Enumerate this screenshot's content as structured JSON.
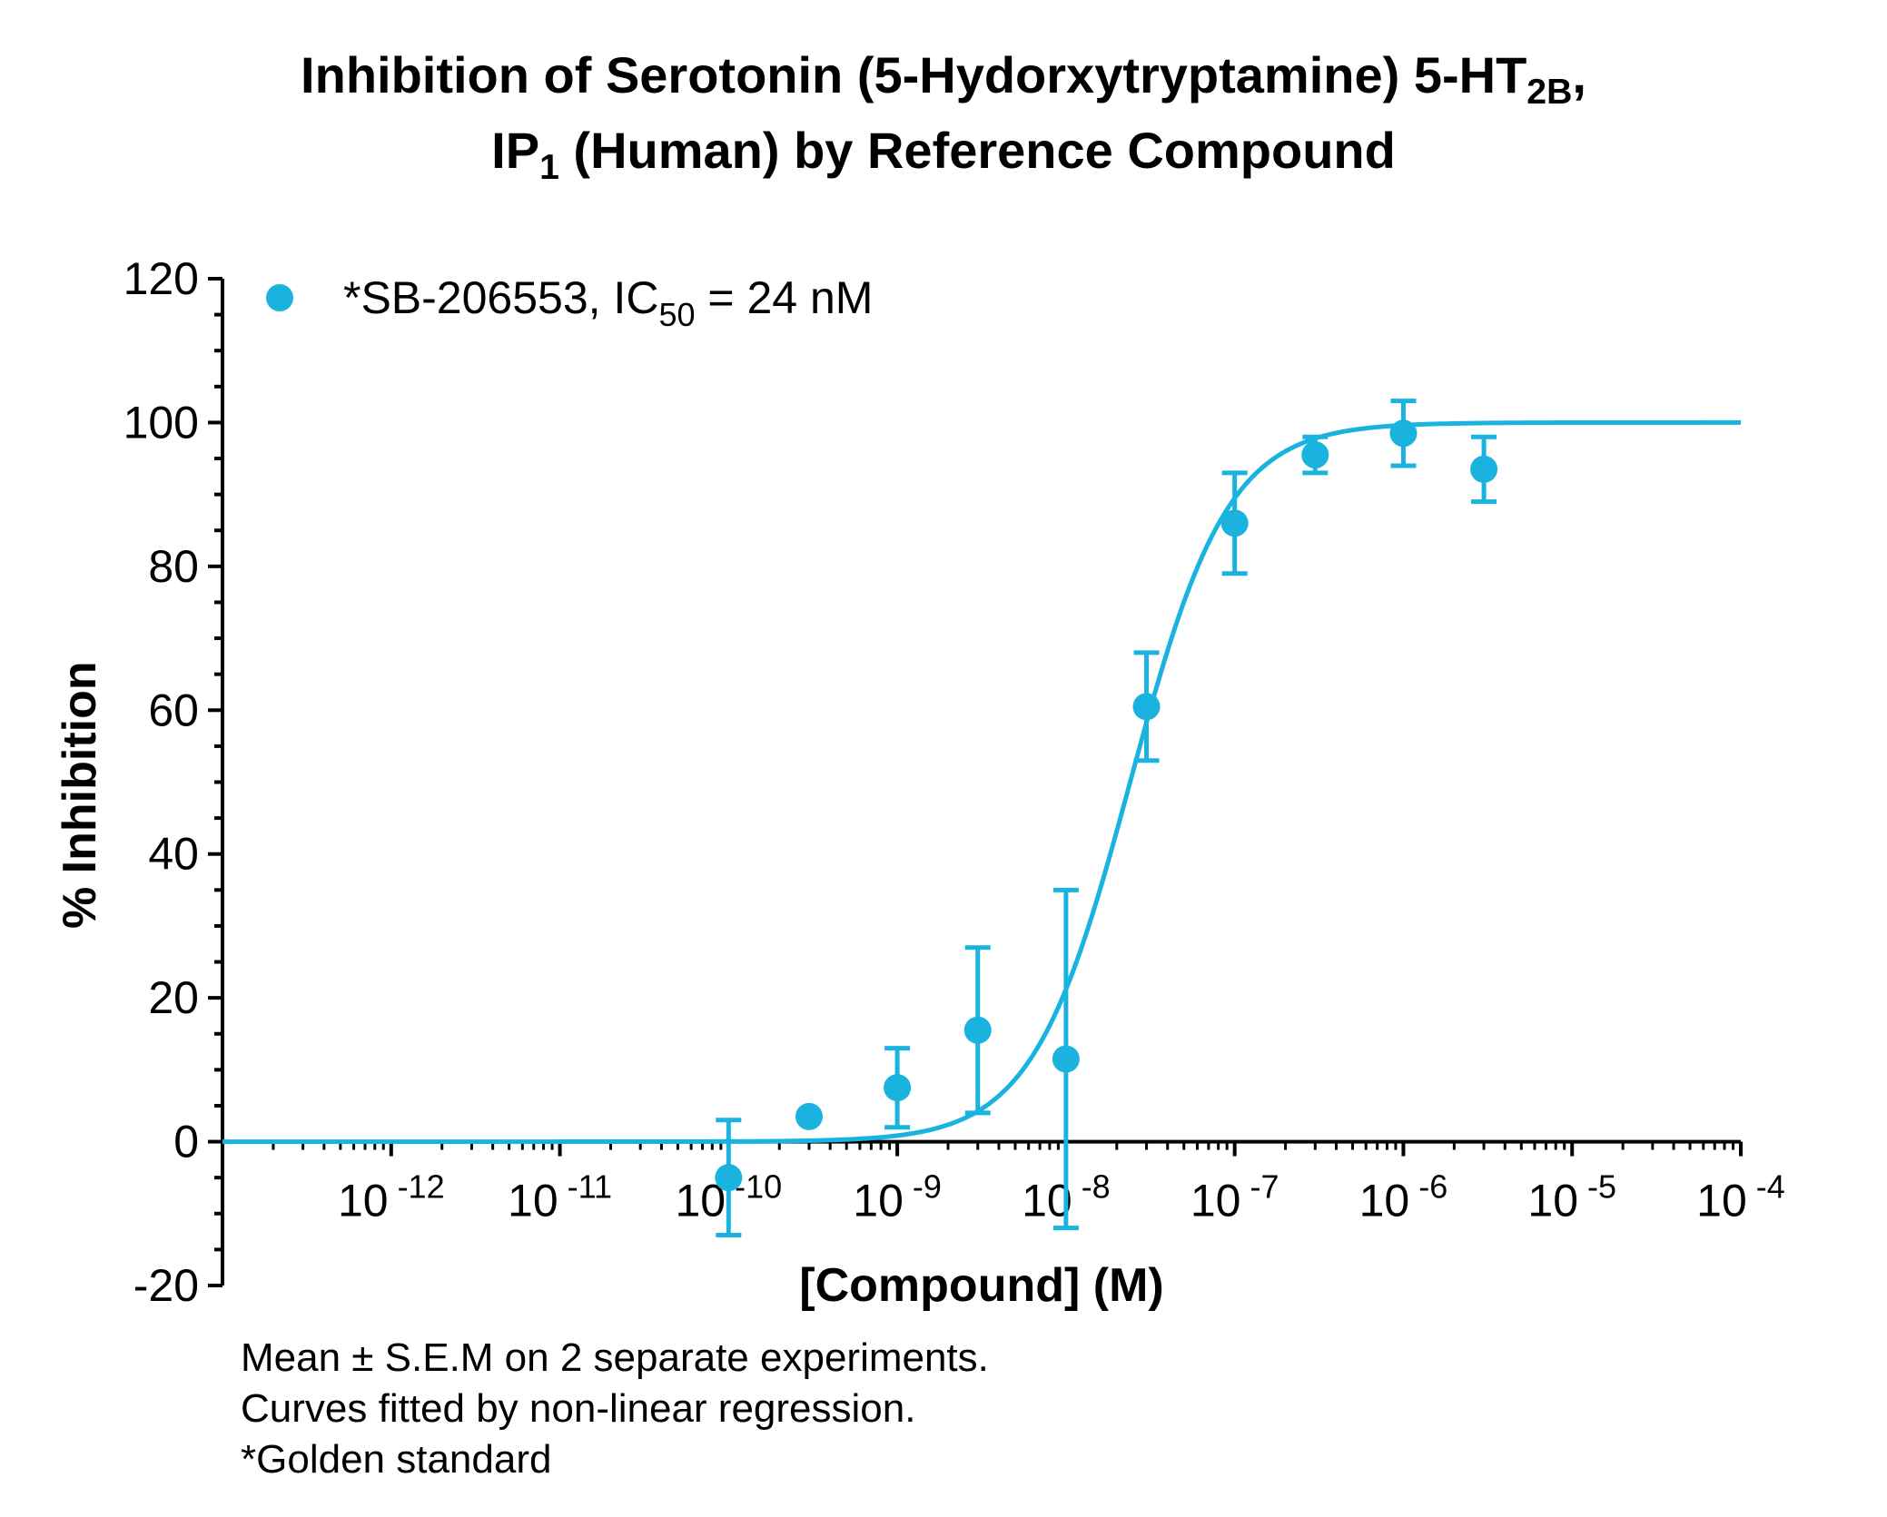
{
  "chart_data": {
    "type": "scatter",
    "title_line1": "Inhibition of Serotonin (5-Hydorxytryptamine) 5-HT",
    "title_line1_sub": "2B",
    "title_line1_suffix": ",",
    "title_line2_prefix": "IP",
    "title_line2_sub": "1",
    "title_line2": " (Human) by Reference Compound",
    "xlabel": "[Compound] (M)",
    "ylabel": "% Inhibition",
    "x_scale": "log",
    "x_range": [
      "1e-13",
      "1e-4"
    ],
    "ylim": [
      -20,
      120
    ],
    "y_ticks": [
      -20,
      0,
      20,
      40,
      60,
      80,
      100,
      120
    ],
    "y_tick_labels": [
      "-20",
      "0",
      "20",
      "40",
      "60",
      "80",
      "100",
      "120"
    ],
    "x_tick_labels": [
      {
        "base": "10",
        "exp": "-12"
      },
      {
        "base": "10",
        "exp": "-11"
      },
      {
        "base": "10",
        "exp": "-10"
      },
      {
        "base": "10",
        "exp": "-9"
      },
      {
        "base": "10",
        "exp": "-8"
      },
      {
        "base": "10",
        "exp": "-7"
      },
      {
        "base": "10",
        "exp": "-6"
      },
      {
        "base": "10",
        "exp": "-5"
      },
      {
        "base": "10",
        "exp": "-4"
      }
    ],
    "grid": false,
    "legend_position": "top-left",
    "series": [
      {
        "name": "*SB-206553, IC",
        "name_sub": "50",
        "name_suffix": " = 24 nM",
        "color": "#1ab3e0",
        "points": [
          {
            "x": "1e-10",
            "y": -5,
            "err": 8
          },
          {
            "x": "3e-10",
            "y": 3.5,
            "err": 0
          },
          {
            "x": "1e-9",
            "y": 7.5,
            "err": 5.5
          },
          {
            "x": "3e-9",
            "y": 15.5,
            "err": 11.5
          },
          {
            "x": "1e-8",
            "y": 11.5,
            "err": 23.5
          },
          {
            "x": "3e-8",
            "y": 60.5,
            "err": 7.5
          },
          {
            "x": "1e-7",
            "y": 86,
            "err": 7
          },
          {
            "x": "3e-7",
            "y": 95.5,
            "err": 2.5
          },
          {
            "x": "1e-6",
            "y": 98.5,
            "err": 4.5
          },
          {
            "x": "3e-6",
            "y": 93.5,
            "err": 4.5
          }
        ],
        "fit": {
          "model": "sigmoidal dose-response",
          "bottom": 0,
          "top": 100,
          "ic50": "2.4e-8",
          "hill_slope": 1.5
        }
      }
    ]
  },
  "footnotes": [
    "Mean ± S.E.M on 2 separate experiments.",
    "Curves fitted by non-linear regression.",
    "*Golden standard"
  ]
}
